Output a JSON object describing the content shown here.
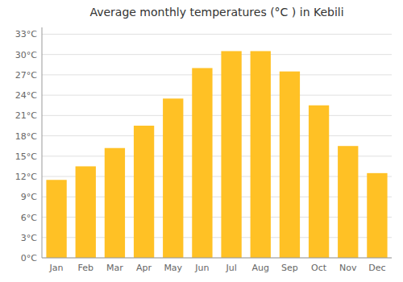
{
  "chart_data": {
    "type": "bar",
    "title": "Average monthly temperatures (°C ) in Kebili",
    "categories": [
      "Jan",
      "Feb",
      "Mar",
      "Apr",
      "May",
      "Jun",
      "Jul",
      "Aug",
      "Sep",
      "Oct",
      "Nov",
      "Dec"
    ],
    "values": [
      11.5,
      13.5,
      16.2,
      19.5,
      23.5,
      28.0,
      30.5,
      30.5,
      27.5,
      22.5,
      16.5,
      12.5
    ],
    "color": "#FFC125",
    "ylim": [
      0,
      34
    ],
    "yticks": [
      {
        "value": 0,
        "label": "0°C"
      },
      {
        "value": 3,
        "label": "3°C"
      },
      {
        "value": 6,
        "label": "6°C"
      },
      {
        "value": 9,
        "label": "9°C"
      },
      {
        "value": 12,
        "label": "12°C"
      },
      {
        "value": 15,
        "label": "15°C"
      },
      {
        "value": 18,
        "label": "18°C"
      },
      {
        "value": 21,
        "label": "21°C"
      },
      {
        "value": 24,
        "label": "24°C"
      },
      {
        "value": 27,
        "label": "27°C"
      },
      {
        "value": 30,
        "label": "30°C"
      },
      {
        "value": 33,
        "label": "33°C"
      }
    ],
    "grid": true
  }
}
